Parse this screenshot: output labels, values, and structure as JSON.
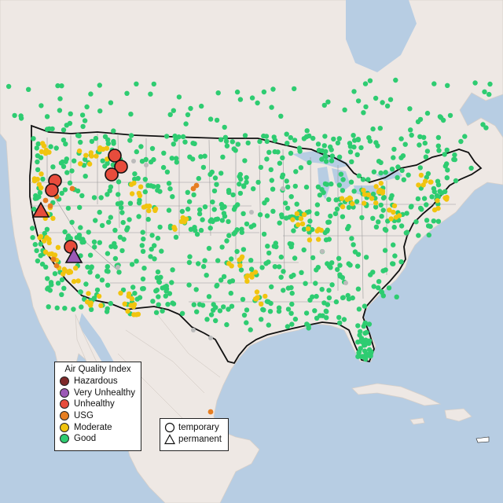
{
  "legend_aqi": {
    "title": "Air Quality Index",
    "items": [
      {
        "label": "Hazardous",
        "color": "#7e2a2a"
      },
      {
        "label": "Very Unhealthy",
        "color": "#9b59b6"
      },
      {
        "label": "Unhealthy",
        "color": "#e74c3c"
      },
      {
        "label": "USG",
        "color": "#e67e22"
      },
      {
        "label": "Moderate",
        "color": "#f1c40f"
      },
      {
        "label": "Good",
        "color": "#2ecc71"
      }
    ]
  },
  "legend_type": {
    "items": [
      {
        "label": "temporary",
        "shape": "circle"
      },
      {
        "label": "permanent",
        "shape": "triangle"
      }
    ]
  },
  "colors": {
    "ocean": "#b7cde3",
    "land": "#eee8e4",
    "good": "#2ecc71",
    "moderate": "#f1c40f",
    "usg": "#e67e22",
    "unhealthy": "#e74c3c",
    "very_unhealthy": "#9b59b6",
    "no_data": "#bbbbbb"
  }
}
